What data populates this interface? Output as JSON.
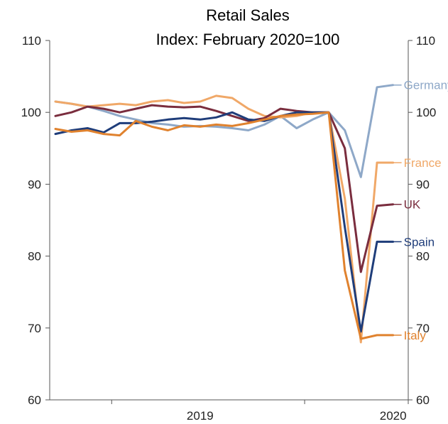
{
  "chart_data": {
    "type": "line",
    "title": "Retail Sales",
    "subtitle": "Index: February 2020=100",
    "xlabel": "",
    "ylabel": "",
    "ylim": [
      60,
      110
    ],
    "yticks": [
      60,
      70,
      80,
      90,
      100,
      110
    ],
    "right_axis": true,
    "grid": false,
    "legend": "inline-labels-right",
    "x_tick_labels": [
      {
        "label": "2019",
        "x": "2019-06"
      },
      {
        "label": "2020",
        "x": "2020-06"
      }
    ],
    "x": [
      "2018-09",
      "2018-10",
      "2018-11",
      "2018-12",
      "2019-01",
      "2019-02",
      "2019-03",
      "2019-04",
      "2019-05",
      "2019-06",
      "2019-07",
      "2019-08",
      "2019-09",
      "2019-10",
      "2019-11",
      "2019-12",
      "2020-01",
      "2020-02",
      "2020-03",
      "2020-04",
      "2020-05",
      "2020-06"
    ],
    "series": [
      {
        "name": "Germany",
        "color": "#8ea8c8",
        "values": [
          101.5,
          101.2,
          100.8,
          100.2,
          99.5,
          99.0,
          98.5,
          98.3,
          98.0,
          98.1,
          98.0,
          97.8,
          97.5,
          98.3,
          99.5,
          97.8,
          99.0,
          100.0,
          97.5,
          91.0,
          103.5,
          103.8
        ]
      },
      {
        "name": "France",
        "color": "#f0a868",
        "values": [
          101.5,
          101.2,
          100.8,
          101.0,
          101.2,
          101.0,
          101.5,
          101.7,
          101.3,
          101.5,
          102.3,
          102.0,
          100.5,
          99.5,
          99.3,
          99.5,
          100.0,
          100.0,
          88.0,
          68.0,
          93.0,
          93.0
        ]
      },
      {
        "name": "UK",
        "color": "#7a2d3e",
        "values": [
          99.5,
          100.0,
          100.8,
          100.5,
          100.0,
          100.5,
          101.0,
          100.8,
          100.7,
          100.8,
          100.2,
          99.5,
          98.8,
          99.2,
          100.5,
          100.2,
          100.0,
          100.0,
          95.0,
          77.8,
          87.0,
          87.2
        ]
      },
      {
        "name": "Spain",
        "color": "#1f3d7a",
        "values": [
          97.0,
          97.5,
          97.8,
          97.2,
          98.5,
          98.5,
          98.7,
          99.0,
          99.2,
          99.0,
          99.3,
          100.0,
          99.0,
          98.8,
          99.5,
          100.0,
          100.0,
          100.0,
          84.0,
          69.5,
          82.0,
          82.0
        ]
      },
      {
        "name": "Italy",
        "color": "#e0822e",
        "values": [
          97.7,
          97.3,
          97.5,
          97.0,
          96.8,
          98.8,
          98.0,
          97.5,
          98.2,
          98.0,
          98.3,
          98.1,
          98.5,
          99.0,
          99.5,
          99.7,
          99.8,
          100.0,
          78.0,
          68.5,
          69.0,
          69.0
        ]
      }
    ]
  }
}
